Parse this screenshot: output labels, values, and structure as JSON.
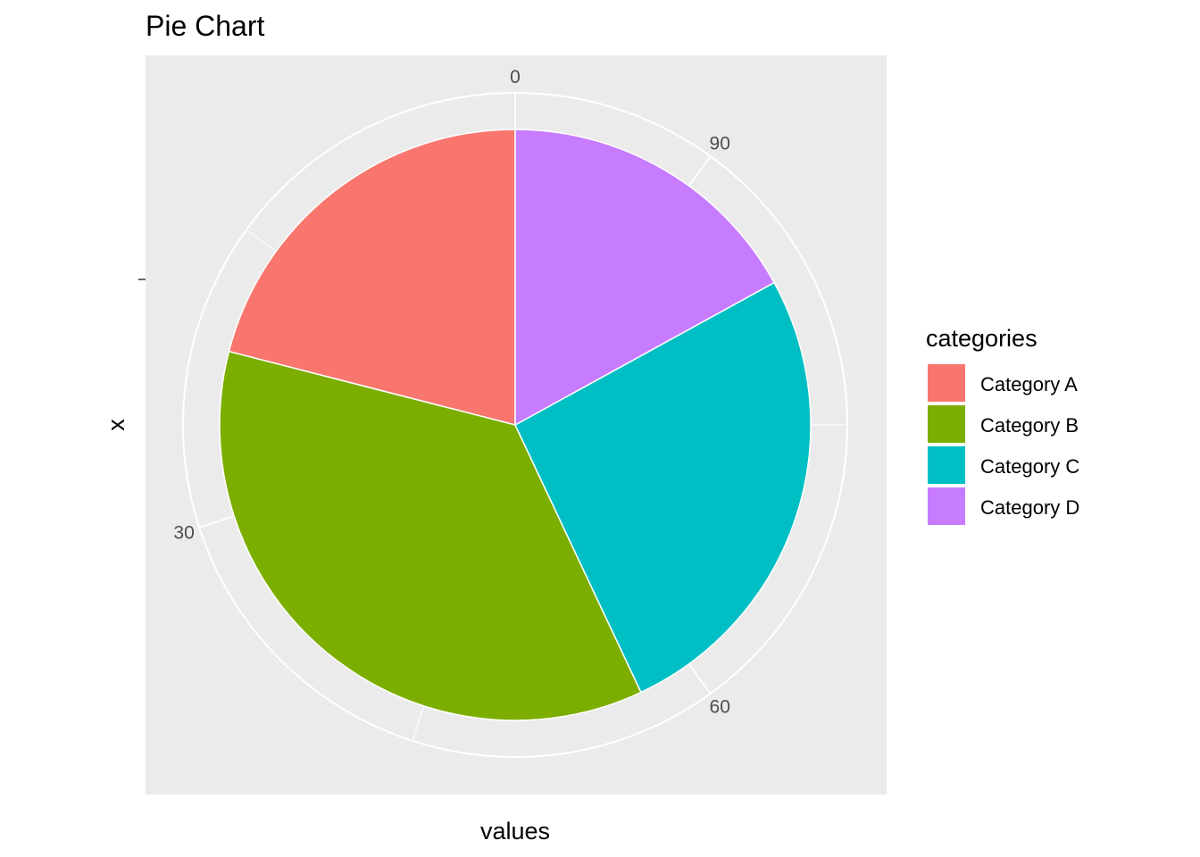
{
  "chart_data": {
    "type": "pie",
    "title": "Pie Chart",
    "xlabel": "values",
    "ylabel": "x",
    "categories": [
      "Category A",
      "Category B",
      "Category C",
      "Category D"
    ],
    "values": [
      21,
      36,
      26,
      17
    ],
    "colors": [
      "#F8766D",
      "#7CAE00",
      "#00BFC4",
      "#C77CFF"
    ],
    "theta_ticks": [
      0,
      30,
      60,
      90
    ],
    "theta_tick_labels": [
      "0",
      "30",
      "60",
      "90"
    ],
    "direction": "counter-clockwise",
    "legend": {
      "title": "categories",
      "position": "right"
    },
    "grid": true,
    "panel_background": "#EBEBEB"
  }
}
